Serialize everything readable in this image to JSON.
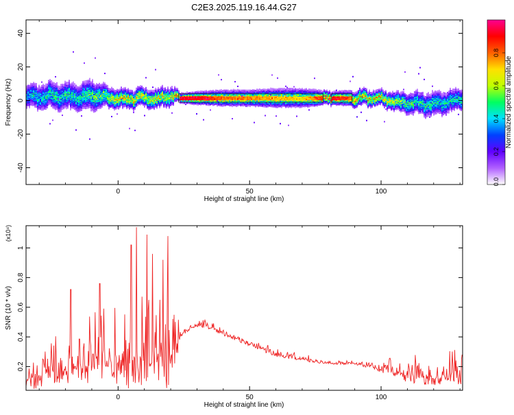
{
  "title": "C2E3.2025.119.16.44.G27",
  "chart_data": [
    {
      "type": "heatmap",
      "xlabel": "Height of straight line (km)",
      "ylabel": "Frequency (Hz)",
      "xlim": [
        -35,
        131
      ],
      "ylim": [
        -50,
        48
      ],
      "xticks": [
        0,
        50,
        100
      ],
      "yticks": [
        -40,
        -20,
        0,
        20,
        40
      ],
      "colorbar": {
        "label": "Normalized spectral amplitude",
        "range": [
          0,
          1
        ],
        "ticks": [
          "0.0",
          "0.2",
          "0.4",
          "0.6",
          "0.8"
        ],
        "colors": [
          "#ffffff",
          "#b060ff",
          "#6000ff",
          "#0040ff",
          "#00e0ff",
          "#00ff60",
          "#c0ff00",
          "#ffe000",
          "#ff6000",
          "#ff0000",
          "#ff0090"
        ]
      },
      "ridge": {
        "x": [
          -35,
          -25,
          -15,
          -10,
          -5,
          0,
          5,
          10,
          15,
          20,
          23,
          30,
          40,
          50,
          60,
          70,
          80,
          90,
          100,
          110,
          120,
          131
        ],
        "center_hz": [
          2,
          3,
          2,
          4,
          2,
          1,
          1,
          2,
          1,
          3,
          1.5,
          1.5,
          1.5,
          1.5,
          1.5,
          1.5,
          1.5,
          1.5,
          1.5,
          -2,
          -2,
          1
        ],
        "spread_hz": [
          8,
          9,
          9,
          10,
          7,
          6,
          6,
          6,
          6,
          6,
          3,
          4,
          5,
          5,
          6,
          6,
          4,
          5,
          5,
          7,
          8,
          7
        ],
        "peak_amp": [
          0.45,
          0.5,
          0.5,
          0.55,
          0.6,
          0.75,
          0.75,
          0.7,
          0.75,
          0.7,
          0.95,
          0.95,
          0.8,
          0.8,
          0.75,
          0.7,
          0.95,
          0.8,
          0.75,
          0.55,
          0.5,
          0.5
        ]
      },
      "flat_segments": [
        [
          23,
          78
        ],
        [
          81,
          89
        ]
      ]
    },
    {
      "type": "line",
      "xlabel": "Height of straight line (km)",
      "ylabel": "SNR (10 * v/v)",
      "y_multiplier": "(x10⁴)",
      "xlim": [
        -35,
        131
      ],
      "ylim": [
        0.04,
        1.15
      ],
      "xticks": [
        0,
        50,
        100
      ],
      "yticks": [
        0.2,
        0.4,
        0.6,
        0.8,
        1.0
      ],
      "series_color": "#ee2222",
      "envelope": {
        "x": [
          -35,
          -25,
          -15,
          -10,
          -5,
          0,
          5,
          10,
          15,
          20,
          24,
          28,
          33,
          40,
          50,
          60,
          70,
          80,
          90,
          100,
          110,
          120,
          131
        ],
        "base": [
          0.1,
          0.15,
          0.2,
          0.2,
          0.2,
          0.2,
          0.2,
          0.2,
          0.2,
          0.2,
          0.42,
          0.46,
          0.48,
          0.42,
          0.35,
          0.28,
          0.25,
          0.22,
          0.22,
          0.18,
          0.14,
          0.12,
          0.12
        ],
        "spread": [
          0.2,
          0.3,
          0.4,
          0.45,
          0.45,
          0.45,
          0.5,
          0.5,
          0.5,
          0.5,
          0.05,
          0.05,
          0.05,
          0.04,
          0.04,
          0.05,
          0.04,
          0.02,
          0.02,
          0.06,
          0.15,
          0.18,
          0.2
        ]
      },
      "spikes": [
        {
          "x": 7,
          "y": 1.14
        },
        {
          "x": 5,
          "y": 1.02
        },
        {
          "x": 11,
          "y": 1.09
        },
        {
          "x": 19,
          "y": 1.08
        },
        {
          "x": 13,
          "y": 0.96
        },
        {
          "x": 17,
          "y": 0.92
        },
        {
          "x": -18,
          "y": 0.72
        },
        {
          "x": -7,
          "y": 0.76
        }
      ]
    }
  ]
}
